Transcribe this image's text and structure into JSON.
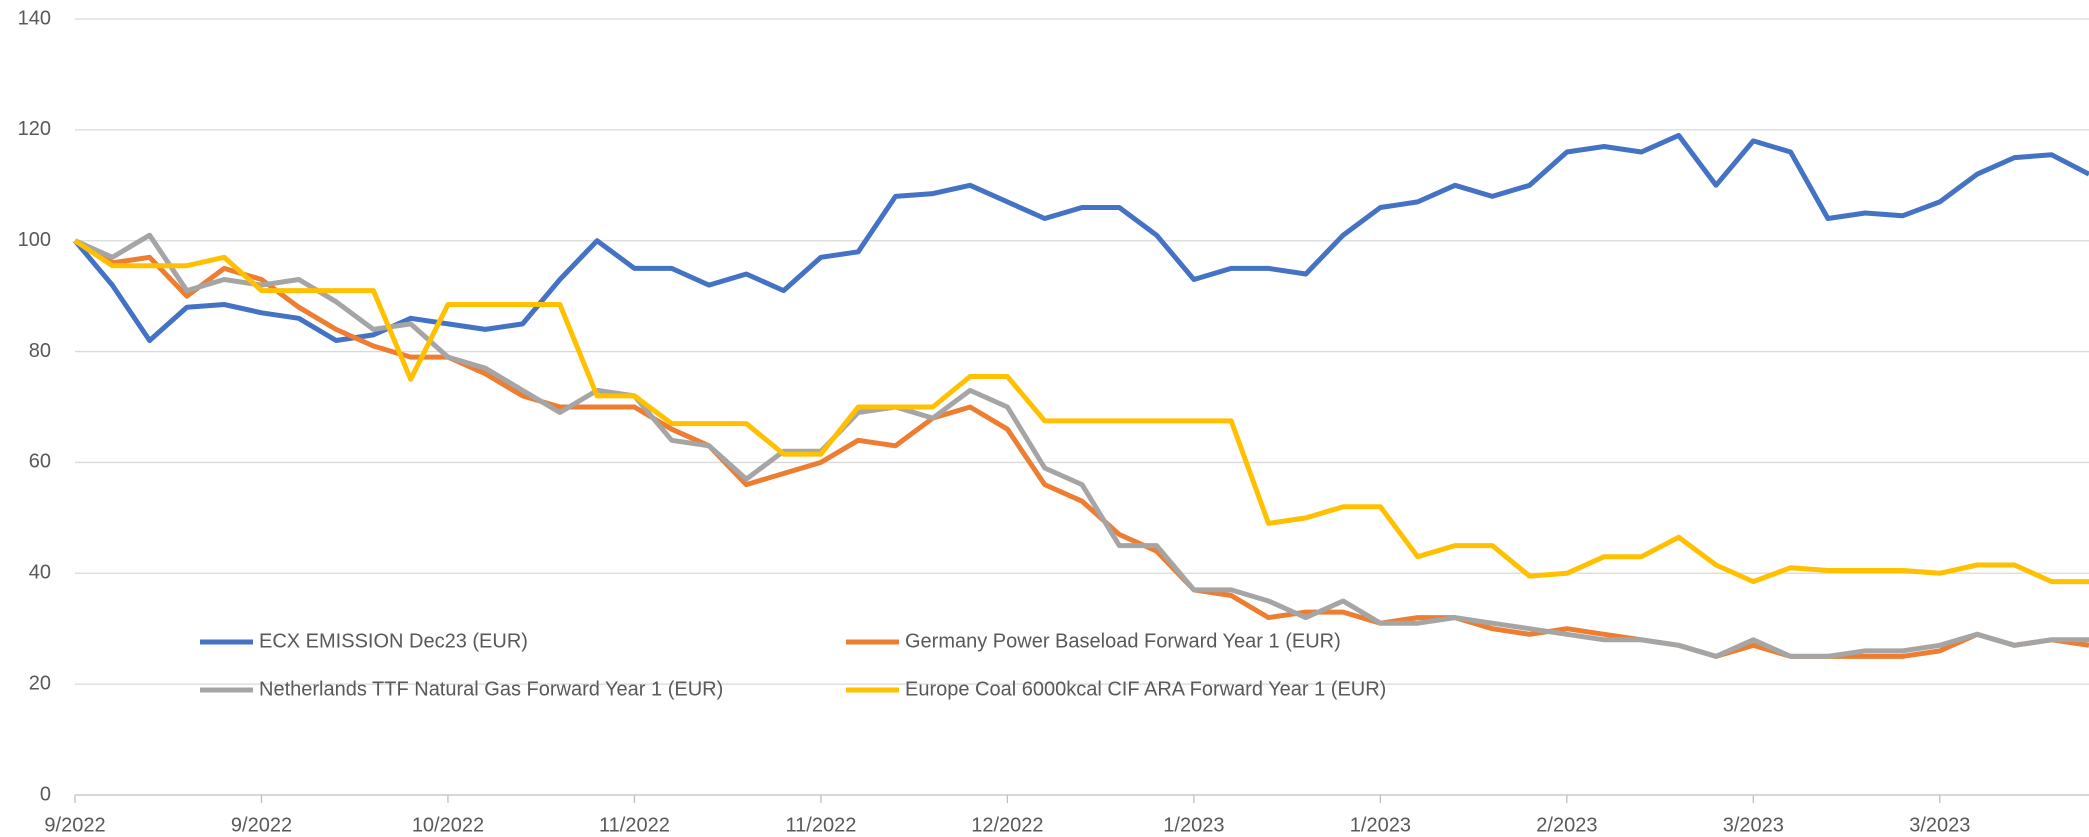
{
  "chart_data": {
    "type": "line",
    "categories": [
      "9/2022",
      null,
      null,
      null,
      null,
      "9/2022",
      null,
      null,
      null,
      null,
      "10/2022",
      null,
      null,
      null,
      null,
      "11/2022",
      null,
      null,
      null,
      null,
      "11/2022",
      null,
      null,
      null,
      null,
      "12/2022",
      null,
      null,
      null,
      null,
      "1/2023",
      null,
      null,
      null,
      null,
      "1/2023",
      null,
      null,
      null,
      null,
      "2/2023",
      null,
      null,
      null,
      null,
      "3/2023",
      null,
      null,
      null,
      null,
      "3/2023",
      null,
      null,
      null,
      null
    ],
    "series": [
      {
        "name": "ECX EMISSION Dec23 (EUR)",
        "color": "#4472c4",
        "values": [
          100,
          92,
          82,
          88,
          88.5,
          87,
          86,
          82,
          83,
          86,
          85,
          84,
          85,
          93,
          100,
          95,
          95,
          92,
          94,
          91,
          97,
          98,
          108,
          108.5,
          110,
          107,
          104,
          106,
          106,
          101,
          93,
          95,
          95,
          94,
          101,
          106,
          107,
          110,
          108,
          110,
          116,
          117,
          116,
          119,
          110,
          118,
          116,
          104,
          105,
          104.5,
          107,
          112,
          115,
          115.5,
          112
        ]
      },
      {
        "name": "Germany Power Baseload Forward Year 1 (EUR)",
        "color": "#ed7d31",
        "values": [
          100,
          96,
          97,
          90,
          95,
          93,
          88,
          84,
          81,
          79,
          79,
          76,
          72,
          70,
          70,
          70,
          66,
          63,
          56,
          58,
          60,
          64,
          63,
          68,
          70,
          66,
          56,
          53,
          47,
          44,
          37,
          36,
          32,
          33,
          33,
          31,
          32,
          32,
          30,
          29,
          30,
          29,
          28,
          27,
          25,
          27,
          25,
          25,
          25,
          25,
          26,
          29,
          27,
          28,
          27
        ]
      },
      {
        "name": "Netherlands TTF Natural Gas Forward Year 1 (EUR)",
        "color": "#a5a5a5",
        "values": [
          100,
          97,
          101,
          91,
          93,
          92,
          93,
          89,
          84,
          85,
          79,
          77,
          73,
          69,
          73,
          72,
          64,
          63,
          57,
          62,
          62,
          69,
          70,
          68,
          73,
          70,
          59,
          56,
          45,
          45,
          37,
          37,
          35,
          32,
          35,
          31,
          31,
          32,
          31,
          30,
          29,
          28,
          28,
          27,
          25,
          28,
          25,
          25,
          26,
          26,
          27,
          29,
          27,
          28,
          28
        ]
      },
      {
        "name": "Europe Coal 6000kcal CIF ARA Forward Year 1 (EUR)",
        "color": "#ffc000",
        "values": [
          100,
          95.5,
          95.5,
          95.5,
          97,
          91,
          91,
          91,
          91,
          75,
          88.5,
          88.5,
          88.5,
          88.5,
          72,
          72,
          67,
          67,
          67,
          61.5,
          61.5,
          70,
          70,
          70,
          75.5,
          75.5,
          67.5,
          67.5,
          67.5,
          67.5,
          67.5,
          67.5,
          49,
          50,
          52,
          52,
          43,
          45,
          45,
          39.5,
          40,
          43,
          43,
          46.5,
          41.5,
          38.5,
          41,
          40.5,
          40.5,
          40.5,
          40,
          41.5,
          41.5,
          38.5,
          38.5
        ]
      }
    ],
    "ylim": [
      0,
      140
    ],
    "yticks": [
      0,
      20,
      40,
      60,
      80,
      100,
      120,
      140
    ],
    "grid": true,
    "legend": "lower left"
  }
}
